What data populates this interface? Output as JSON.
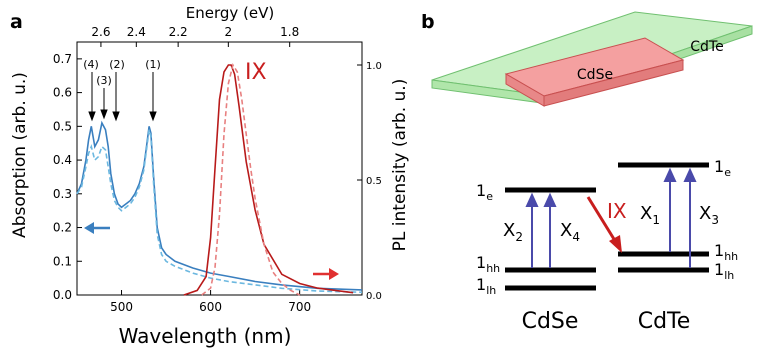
{
  "panel_a": {
    "label": "a",
    "top_axis_label": "Energy (eV)",
    "top_ticks": [
      "2.6",
      "2.4",
      "2.2",
      "2",
      "1.8"
    ],
    "left_axis_label": "Absorption (arb. u.)",
    "right_axis_label": "PL intensity (arb. u.)",
    "bottom_axis_label": "Wavelength (nm)",
    "peak_labels": [
      "(4)",
      "(3)",
      "(2)",
      "(1)"
    ],
    "ix_label": "IX"
  },
  "panel_b": {
    "label": "b",
    "cdse_slab_label": "CdSe",
    "cdte_slab_label": "CdTe",
    "levels": {
      "cdse_1e": "1",
      "cdse_1e_sub": "e",
      "cdse_1hh": "1",
      "cdse_1hh_sub": "hh",
      "cdse_1lh": "1",
      "cdse_1lh_sub": "lh",
      "cdte_1e": "1",
      "cdte_1e_sub": "e",
      "cdte_1hh": "1",
      "cdte_1hh_sub": "hh",
      "cdte_1lh": "1",
      "cdte_1lh_sub": "lh"
    },
    "transitions": {
      "x2": "X",
      "x2_sub": "2",
      "x4": "X",
      "x4_sub": "4",
      "x1": "X",
      "x1_sub": "1",
      "x3": "X",
      "x3_sub": "3",
      "ix": "IX"
    },
    "cdse_label": "CdSe",
    "cdte_label": "CdTe"
  },
  "colors": {
    "absorption": "#3a7fbf",
    "absorption_dashed": "#6cb8e0",
    "pl": "#b81a1a",
    "pl_dashed": "#e88080",
    "transition": "#4a4aaa",
    "ix": "#c81e1e"
  },
  "chart_data": {
    "type": "line",
    "xlabel": "Wavelength (nm)",
    "ylabel": "Absorption (arb. u.)",
    "y2label": "PL intensity (arb. u.)",
    "x2label": "Energy (eV)",
    "xlim": [
      450,
      770
    ],
    "ylim": [
      0,
      0.75
    ],
    "y2lim": [
      0,
      1.1
    ],
    "x_ticks": [
      500,
      600,
      700
    ],
    "y_ticks": [
      0.0,
      0.1,
      0.2,
      0.3,
      0.4,
      0.5,
      0.6,
      0.7
    ],
    "y2_ticks": [
      0.0,
      0.5,
      1.0
    ],
    "x2_ticks": [
      2.6,
      2.4,
      2.2,
      2.0,
      1.8
    ],
    "series": [
      {
        "axis": "left",
        "style": "solid",
        "x": [
          450,
          455,
          460,
          463,
          466,
          470,
          474,
          478,
          482,
          485,
          488,
          492,
          496,
          500,
          505,
          510,
          515,
          520,
          525,
          528,
          531,
          533,
          536,
          540,
          545,
          550,
          560,
          580,
          600,
          620,
          650,
          680,
          720,
          770
        ],
        "y": [
          0.3,
          0.33,
          0.4,
          0.46,
          0.5,
          0.44,
          0.46,
          0.51,
          0.49,
          0.44,
          0.36,
          0.3,
          0.27,
          0.26,
          0.27,
          0.28,
          0.3,
          0.33,
          0.38,
          0.44,
          0.5,
          0.48,
          0.35,
          0.2,
          0.14,
          0.12,
          0.1,
          0.08,
          0.065,
          0.055,
          0.04,
          0.03,
          0.02,
          0.015
        ]
      },
      {
        "axis": "left",
        "style": "dashed",
        "x": [
          450,
          455,
          460,
          463,
          466,
          470,
          474,
          478,
          482,
          485,
          488,
          492,
          496,
          500,
          505,
          510,
          515,
          520,
          525,
          528,
          531,
          533,
          536,
          540,
          545,
          550,
          560,
          580,
          600,
          620,
          650,
          680,
          720,
          770
        ],
        "y": [
          0.3,
          0.32,
          0.38,
          0.42,
          0.44,
          0.4,
          0.41,
          0.44,
          0.43,
          0.38,
          0.33,
          0.28,
          0.26,
          0.25,
          0.26,
          0.27,
          0.29,
          0.32,
          0.37,
          0.43,
          0.49,
          0.47,
          0.33,
          0.18,
          0.12,
          0.1,
          0.085,
          0.065,
          0.05,
          0.04,
          0.03,
          0.02,
          0.012,
          0.008
        ]
      },
      {
        "axis": "right",
        "style": "solid",
        "x": [
          570,
          585,
          595,
          600,
          605,
          610,
          615,
          620,
          623,
          627,
          632,
          640,
          650,
          660,
          680,
          700,
          720,
          740,
          760
        ],
        "y": [
          0.0,
          0.02,
          0.08,
          0.25,
          0.55,
          0.85,
          0.97,
          1.0,
          1.0,
          0.96,
          0.82,
          0.58,
          0.37,
          0.22,
          0.09,
          0.05,
          0.03,
          0.02,
          0.01
        ]
      },
      {
        "axis": "right",
        "style": "dashed",
        "x": [
          590,
          600,
          605,
          610,
          615,
          620,
          625,
          630,
          635,
          640,
          645,
          650,
          660,
          670,
          680,
          690,
          700
        ],
        "y": [
          0.0,
          0.03,
          0.12,
          0.35,
          0.7,
          0.92,
          1.0,
          0.97,
          0.85,
          0.7,
          0.55,
          0.42,
          0.22,
          0.1,
          0.05,
          0.02,
          0.0
        ]
      }
    ]
  }
}
